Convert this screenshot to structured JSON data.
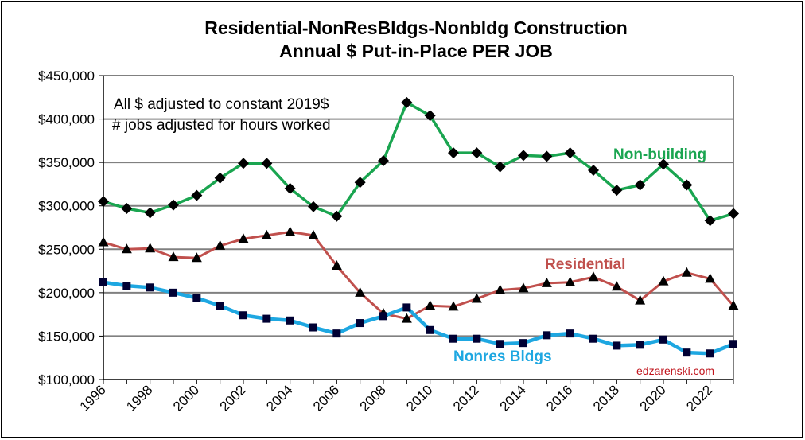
{
  "chart_data": {
    "type": "line",
    "title": [
      "Residential-NonResBldgs-Nonbldg Construction",
      "Annual $ Put-in-Place PER JOB"
    ],
    "xlabel": "",
    "ylabel": "",
    "x": [
      1996,
      1997,
      1998,
      1999,
      2000,
      2001,
      2002,
      2003,
      2004,
      2005,
      2006,
      2007,
      2008,
      2009,
      2010,
      2011,
      2012,
      2013,
      2014,
      2015,
      2016,
      2017,
      2018,
      2019,
      2020,
      2021,
      2022,
      2023
    ],
    "xlim": [
      1996,
      2023
    ],
    "ylim": [
      100000,
      450000
    ],
    "y_ticks": [
      100000,
      150000,
      200000,
      250000,
      300000,
      350000,
      400000,
      450000
    ],
    "y_tick_labels": [
      "$100,000",
      "$150,000",
      "$200,000",
      "$250,000",
      "$300,000",
      "$350,000",
      "$400,000",
      "$450,000"
    ],
    "x_tick_labels": [
      "1996",
      "1998",
      "2000",
      "2002",
      "2004",
      "2006",
      "2008",
      "2010",
      "2012",
      "2014",
      "2016",
      "2018",
      "2020",
      "2022"
    ],
    "grid": true,
    "series": [
      {
        "name": "Non-building",
        "color": "#1aa550",
        "marker": "diamond",
        "values": [
          305000,
          297000,
          292000,
          301000,
          312000,
          332000,
          349000,
          349000,
          320000,
          299000,
          288000,
          327000,
          352000,
          419000,
          404000,
          361000,
          361000,
          345000,
          358000,
          357000,
          361000,
          341000,
          318000,
          324000,
          348000,
          324000,
          283000,
          291000
        ]
      },
      {
        "name": "Residential",
        "color": "#c0504d",
        "marker": "triangle",
        "values": [
          258000,
          250000,
          251000,
          241000,
          240000,
          254000,
          262000,
          266000,
          270000,
          266000,
          231000,
          200000,
          176000,
          170000,
          185000,
          184000,
          193000,
          203000,
          205000,
          211000,
          212000,
          218000,
          207000,
          191000,
          213000,
          223000,
          216000,
          185000
        ]
      },
      {
        "name": "Nonres Bldgs",
        "color": "#1ea7e1",
        "marker": "square",
        "values": [
          212000,
          208000,
          206000,
          200000,
          194000,
          185000,
          174000,
          170000,
          168000,
          160000,
          153000,
          165000,
          173000,
          183000,
          157000,
          147000,
          147000,
          141000,
          142000,
          151000,
          153000,
          147000,
          139000,
          140000,
          146000,
          131000,
          130000,
          141000
        ]
      }
    ],
    "annotations": [
      "All $ adjusted to constant 2019$",
      "# jobs adjusted for hours worked",
      "edzarenski.com"
    ],
    "legend": "inline-labels"
  }
}
